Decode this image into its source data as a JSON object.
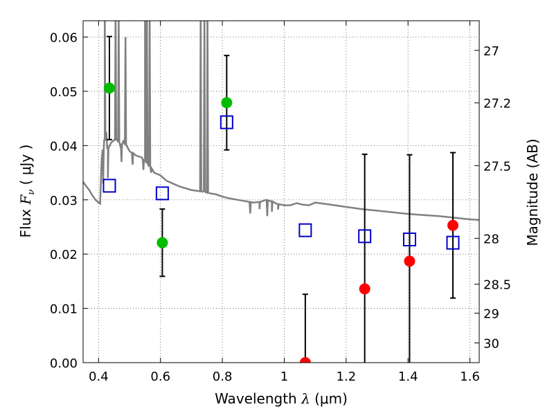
{
  "chart_data": {
    "type": "scatter",
    "title": "",
    "xlabel": {
      "pre": "Wavelength  ",
      "sym": "λ",
      "post": " (μm)"
    },
    "ylabel": {
      "pre": "Flux  ",
      "sym": "F",
      "sub": "ν",
      "post": "  ( μJy )"
    },
    "ylabel_right": "Magnitude (AB)",
    "xlim": [
      0.35,
      1.63
    ],
    "ylim": [
      0.0,
      0.063
    ],
    "grid": true,
    "x_ticks": [
      {
        "v": 0.4,
        "label": "0.4"
      },
      {
        "v": 0.6,
        "label": "0.6"
      },
      {
        "v": 0.8,
        "label": "0.8"
      },
      {
        "v": 1.0,
        "label": "1"
      },
      {
        "v": 1.2,
        "label": "1.2"
      },
      {
        "v": 1.4,
        "label": "1.4"
      },
      {
        "v": 1.6,
        "label": "1.6"
      }
    ],
    "y_ticks": [
      {
        "v": 0.0,
        "label": "0.00"
      },
      {
        "v": 0.01,
        "label": "0.01"
      },
      {
        "v": 0.02,
        "label": "0.02"
      },
      {
        "v": 0.03,
        "label": "0.03"
      },
      {
        "v": 0.04,
        "label": "0.04"
      },
      {
        "v": 0.05,
        "label": "0.05"
      },
      {
        "v": 0.06,
        "label": "0.06"
      }
    ],
    "magnitude_ticks": [
      "27",
      "27.2",
      "27.5",
      "28",
      "28.5",
      "29",
      "30"
    ],
    "series": [
      {
        "color": "#00bb00",
        "marker": "circle",
        "points": [
          {
            "x": 0.435,
            "y": 0.0506,
            "err": 0.0095
          },
          {
            "x": 0.606,
            "y": 0.0221,
            "err": 0.0062
          },
          {
            "x": 0.814,
            "y": 0.0479,
            "err": 0.0087
          }
        ]
      },
      {
        "color": "#ff0000",
        "marker": "circle",
        "points": [
          {
            "x": 1.068,
            "y": 0.0,
            "err": 0.0126
          },
          {
            "x": 1.26,
            "y": 0.0136,
            "err": 0.0248
          },
          {
            "x": 1.405,
            "y": 0.0187,
            "err": 0.0196
          },
          {
            "x": 1.545,
            "y": 0.0253,
            "err": 0.0134
          }
        ]
      },
      {
        "color": "#0000cc",
        "marker": "square-open",
        "points": [
          {
            "x": 0.435,
            "y": 0.0326
          },
          {
            "x": 0.606,
            "y": 0.0312
          },
          {
            "x": 0.814,
            "y": 0.0443
          },
          {
            "x": 1.068,
            "y": 0.0244
          },
          {
            "x": 1.26,
            "y": 0.0233
          },
          {
            "x": 1.405,
            "y": 0.0227
          },
          {
            "x": 1.545,
            "y": 0.0221
          }
        ]
      }
    ],
    "model_spectrum": {
      "color": "#808080",
      "x": [
        0.35,
        0.36,
        0.37,
        0.38,
        0.39,
        0.4,
        0.405,
        0.41,
        0.42,
        0.425,
        0.43,
        0.44,
        0.45,
        0.46,
        0.47,
        0.48,
        0.5,
        0.52,
        0.54,
        0.55,
        0.56,
        0.58,
        0.6,
        0.62,
        0.64,
        0.66,
        0.7,
        0.74,
        0.76,
        0.78,
        0.8,
        0.82,
        0.85,
        0.88,
        0.9,
        0.92,
        0.94,
        0.96,
        0.98,
        1.0,
        1.02,
        1.04,
        1.06,
        1.08,
        1.1,
        1.15,
        1.2,
        1.25,
        1.3,
        1.35,
        1.4,
        1.45,
        1.5,
        1.55,
        1.6,
        1.63
      ],
      "y": [
        0.0333,
        0.0325,
        0.0318,
        0.0308,
        0.03,
        0.0295,
        0.0293,
        0.0375,
        0.041,
        0.0425,
        0.0395,
        0.0405,
        0.041,
        0.0412,
        0.04,
        0.0408,
        0.039,
        0.0382,
        0.0378,
        0.0372,
        0.0365,
        0.035,
        0.0345,
        0.0335,
        0.033,
        0.0325,
        0.0318,
        0.0315,
        0.0312,
        0.031,
        0.0306,
        0.0303,
        0.03,
        0.0297,
        0.0295,
        0.0296,
        0.03,
        0.0297,
        0.0292,
        0.029,
        0.029,
        0.0294,
        0.0291,
        0.029,
        0.0295,
        0.0291,
        0.0287,
        0.0283,
        0.028,
        0.0277,
        0.0274,
        0.0272,
        0.027,
        0.0267,
        0.0264,
        0.0263
      ],
      "spikes": [
        {
          "x": 0.42,
          "y": 0.066
        },
        {
          "x": 0.455,
          "y": 0.066
        },
        {
          "x": 0.465,
          "y": 0.064
        },
        {
          "x": 0.487,
          "y": 0.06
        },
        {
          "x": 0.55,
          "y": 0.066
        },
        {
          "x": 0.556,
          "y": 0.066
        },
        {
          "x": 0.565,
          "y": 0.066
        },
        {
          "x": 0.73,
          "y": 0.066
        },
        {
          "x": 0.742,
          "y": 0.066
        },
        {
          "x": 0.752,
          "y": 0.066
        }
      ],
      "dips": [
        {
          "x": 0.415,
          "y": 0.033
        },
        {
          "x": 0.43,
          "y": 0.034
        },
        {
          "x": 0.474,
          "y": 0.037
        },
        {
          "x": 0.51,
          "y": 0.0365
        },
        {
          "x": 0.545,
          "y": 0.0355
        },
        {
          "x": 0.57,
          "y": 0.035
        },
        {
          "x": 0.89,
          "y": 0.0275
        },
        {
          "x": 0.92,
          "y": 0.0283
        },
        {
          "x": 0.945,
          "y": 0.027
        },
        {
          "x": 0.96,
          "y": 0.0278
        },
        {
          "x": 0.98,
          "y": 0.0282
        }
      ]
    }
  }
}
